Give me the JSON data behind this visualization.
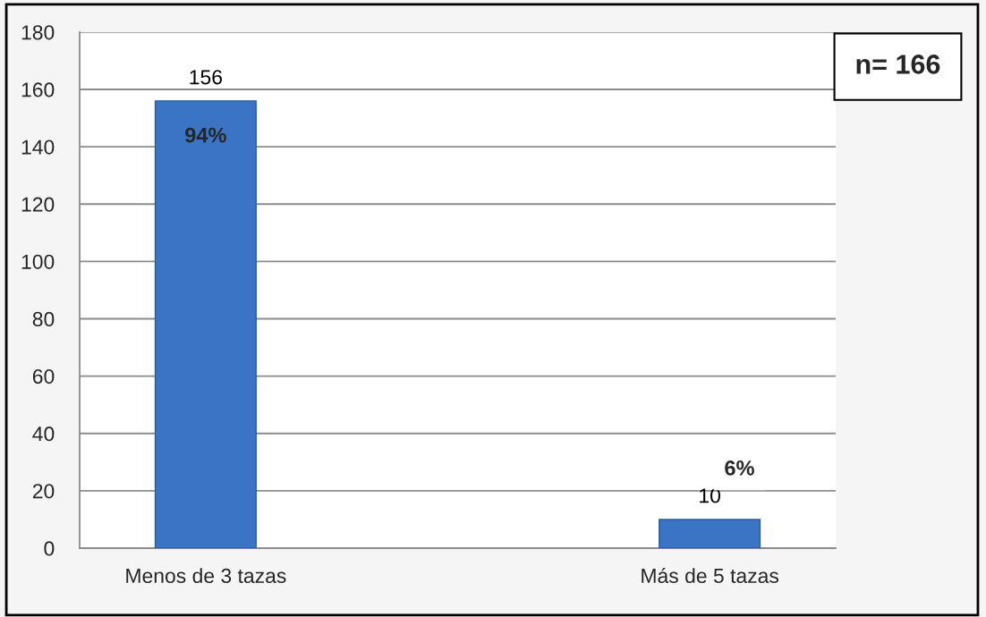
{
  "chart_data": {
    "type": "bar",
    "categories": [
      "Menos de 3 tazas",
      null,
      "Más de 5 tazas"
    ],
    "values": [
      156,
      null,
      10
    ],
    "color": "#3b74c4",
    "ylim": [
      0,
      180
    ],
    "yticks": [
      0,
      20,
      40,
      60,
      80,
      100,
      120,
      140,
      160,
      180
    ],
    "grid": "y",
    "data_labels": true,
    "annotations": [
      {
        "text": "94%",
        "x": "Menos de 3 tazas",
        "y": 156
      },
      {
        "text": "6%",
        "x": "Más de 5 tazas",
        "y": 10
      },
      "n= 166"
    ]
  }
}
